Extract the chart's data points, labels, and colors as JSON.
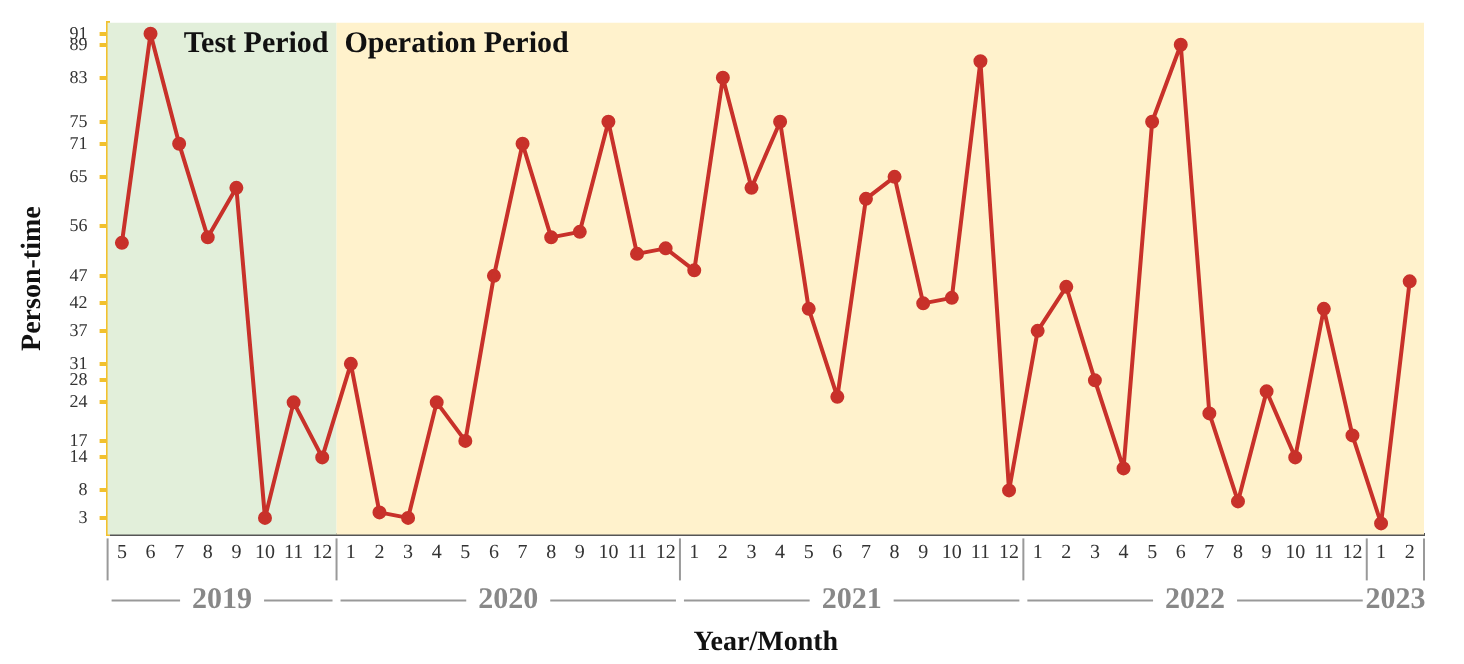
{
  "chart_data": {
    "type": "line",
    "xlabel": "Year/Month",
    "ylabel": "Person-time",
    "x": [
      "2019-05",
      "2019-06",
      "2019-07",
      "2019-08",
      "2019-09",
      "2019-10",
      "2019-11",
      "2019-12",
      "2020-01",
      "2020-02",
      "2020-03",
      "2020-04",
      "2020-05",
      "2020-06",
      "2020-07",
      "2020-08",
      "2020-09",
      "2020-10",
      "2020-11",
      "2020-12",
      "2021-01",
      "2021-02",
      "2021-03",
      "2021-04",
      "2021-05",
      "2021-06",
      "2021-07",
      "2021-08",
      "2021-09",
      "2021-10",
      "2021-11",
      "2021-12",
      "2022-01",
      "2022-02",
      "2022-03",
      "2022-04",
      "2022-05",
      "2022-06",
      "2022-07",
      "2022-08",
      "2022-09",
      "2022-10",
      "2022-11",
      "2022-12",
      "2023-01",
      "2023-02"
    ],
    "values": [
      53,
      91,
      71,
      54,
      63,
      3,
      24,
      14,
      31,
      4,
      3,
      24,
      17,
      47,
      71,
      54,
      55,
      75,
      51,
      52,
      48,
      83,
      63,
      75,
      41,
      25,
      61,
      65,
      42,
      43,
      86,
      8,
      37,
      45,
      28,
      12,
      75,
      89,
      22,
      6,
      26,
      14,
      41,
      18,
      2,
      46
    ],
    "color": "#c8312a",
    "marker": "circle",
    "xlim": [
      "2019-04-16",
      "2023-02-16"
    ],
    "xticks": [
      {
        "value": "2019-05",
        "label": "5"
      },
      {
        "value": "2019-06",
        "label": "6"
      },
      {
        "value": "2019-07",
        "label": "7"
      },
      {
        "value": "2019-08",
        "label": "8"
      },
      {
        "value": "2019-09",
        "label": "9"
      },
      {
        "value": "2019-10",
        "label": "10"
      },
      {
        "value": "2019-11",
        "label": "11"
      },
      {
        "value": "2019-12",
        "label": "12"
      },
      {
        "value": "2020-01",
        "label": "1"
      },
      {
        "value": "2020-02",
        "label": "2"
      },
      {
        "value": "2020-03",
        "label": "3"
      },
      {
        "value": "2020-04",
        "label": "4"
      },
      {
        "value": "2020-05",
        "label": "5"
      },
      {
        "value": "2020-06",
        "label": "6"
      },
      {
        "value": "2020-07",
        "label": "7"
      },
      {
        "value": "2020-08",
        "label": "8"
      },
      {
        "value": "2020-09",
        "label": "9"
      },
      {
        "value": "2020-10",
        "label": "10"
      },
      {
        "value": "2020-11",
        "label": "11"
      },
      {
        "value": "2020-12",
        "label": "12"
      },
      {
        "value": "2021-01",
        "label": "1"
      },
      {
        "value": "2021-02",
        "label": "2"
      },
      {
        "value": "2021-03",
        "label": "3"
      },
      {
        "value": "2021-04",
        "label": "4"
      },
      {
        "value": "2021-05",
        "label": "5"
      },
      {
        "value": "2021-06",
        "label": "6"
      },
      {
        "value": "2021-07",
        "label": "7"
      },
      {
        "value": "2021-08",
        "label": "8"
      },
      {
        "value": "2021-09",
        "label": "9"
      },
      {
        "value": "2021-10",
        "label": "10"
      },
      {
        "value": "2021-11",
        "label": "11"
      },
      {
        "value": "2021-12",
        "label": "12"
      },
      {
        "value": "2022-01",
        "label": "1"
      },
      {
        "value": "2022-02",
        "label": "2"
      },
      {
        "value": "2022-03",
        "label": "3"
      },
      {
        "value": "2022-04",
        "label": "4"
      },
      {
        "value": "2022-05",
        "label": "5"
      },
      {
        "value": "2022-06",
        "label": "6"
      },
      {
        "value": "2022-07",
        "label": "7"
      },
      {
        "value": "2022-08",
        "label": "8"
      },
      {
        "value": "2022-09",
        "label": "9"
      },
      {
        "value": "2022-10",
        "label": "10"
      },
      {
        "value": "2022-11",
        "label": "11"
      },
      {
        "value": "2022-12",
        "label": "12"
      },
      {
        "value": "2023-01",
        "label": "1"
      },
      {
        "value": "2023-02",
        "label": "2"
      }
    ],
    "ylim": [
      0,
      93
    ],
    "yticks": [
      3,
      8,
      14,
      17,
      24,
      28,
      31,
      37,
      42,
      47,
      56,
      65,
      71,
      75,
      83,
      89,
      91
    ],
    "bands": [
      {
        "axis": "x",
        "from": "2019-04-16",
        "to": "2019-12-16",
        "label": "Test Period",
        "color": "#e2efda"
      },
      {
        "axis": "x",
        "from": "2019-12-16",
        "to": "2023-02-16",
        "label": "Operation Period",
        "color": "#fff2cc"
      }
    ],
    "annotations": [
      "2019",
      "2020",
      "2021",
      "2022",
      "2023"
    ],
    "legend": false
  }
}
